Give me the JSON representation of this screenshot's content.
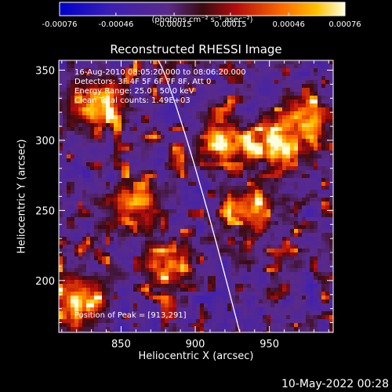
{
  "colorbar": {
    "ticks": [
      "-0.00076",
      "-0.00046",
      "-0.00015",
      "0.00015",
      "0.00046",
      "0.00076"
    ],
    "units": "(photons cm⁻² s⁻¹ asec⁻²)",
    "range": [
      -0.00076,
      0.00076
    ]
  },
  "chart_data": {
    "type": "heatmap",
    "title": "Reconstructed RHESSI Image",
    "xlabel": "Heliocentric X (arcsec)",
    "ylabel": "Heliocentric Y (arcsec)",
    "xlim": [
      808,
      993
    ],
    "ylim": [
      163,
      357
    ],
    "xticks": [
      850,
      900,
      950
    ],
    "yticks": [
      200,
      250,
      300,
      350
    ],
    "annotations": [
      "16-Aug-2010 08:05:20.000 to 08:06:20.000",
      "Detectors: 3F 4F 5F 6F 7F 8F, Att 0",
      "Energy Range: 25.0 - 50.0 keV",
      "Clean    Total counts: 1.49E+03"
    ],
    "peak_label": "Position of Peak = [913,291]",
    "peak": [
      913,
      291
    ],
    "limb_curve": "solar limb (white arc)",
    "bright_regions": [
      {
        "x": 835,
        "y": 325,
        "level": 0.9
      },
      {
        "x": 822,
        "y": 183,
        "level": 0.95
      },
      {
        "x": 955,
        "y": 298,
        "level": 1.0
      },
      {
        "x": 918,
        "y": 300,
        "level": 0.85
      },
      {
        "x": 935,
        "y": 250,
        "level": 0.8
      },
      {
        "x": 882,
        "y": 210,
        "level": 0.75
      },
      {
        "x": 975,
        "y": 315,
        "level": 0.7
      },
      {
        "x": 860,
        "y": 255,
        "level": 0.7
      }
    ]
  },
  "footer": {
    "date": "10-May-2022 00:28"
  }
}
